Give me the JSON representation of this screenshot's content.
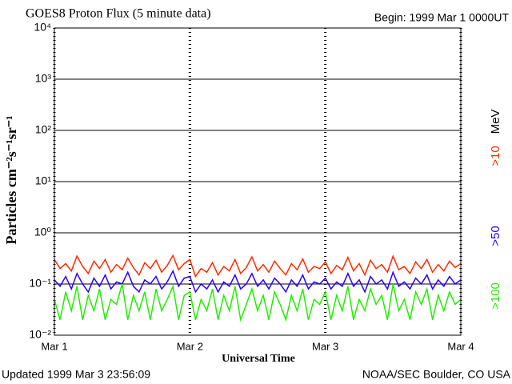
{
  "chart_data": {
    "type": "line",
    "title": "GOES8 Proton Flux (5 minute data)",
    "subtitle": "Begin: 1999 Mar 1 0000UT",
    "y_label": "Particles cm⁻²s⁻¹sr⁻¹",
    "x_label": "Universal Time",
    "legend_unit": "MeV",
    "footer_left": "Updated 1999 Mar  3 23:56:09",
    "footer_right": "NOAA/SEC Boulder, CO USA",
    "log_y": true,
    "grid": true,
    "xlim": [
      0,
      72
    ],
    "xticks": [
      {
        "value": 0,
        "label": "Mar 1"
      },
      {
        "value": 24,
        "label": "Mar 2"
      },
      {
        "value": 48,
        "label": "Mar 3"
      },
      {
        "value": 72,
        "label": "Mar 4"
      }
    ],
    "ylim": [
      0.01,
      10000
    ],
    "yticks": [
      {
        "value": 0.01,
        "label": "10⁻²"
      },
      {
        "value": 0.1,
        "label": "10⁻¹"
      },
      {
        "value": 1,
        "label": "10⁰"
      },
      {
        "value": 10,
        "label": "10¹"
      },
      {
        "value": 100,
        "label": "10²"
      },
      {
        "value": 1000,
        "label": "10³"
      },
      {
        "value": 10000,
        "label": "10⁴"
      }
    ],
    "x": [
      0,
      1,
      2,
      3,
      4,
      5,
      6,
      7,
      8,
      9,
      10,
      11,
      12,
      13,
      14,
      15,
      16,
      17,
      18,
      19,
      20,
      21,
      22,
      23,
      24,
      25,
      26,
      27,
      28,
      29,
      30,
      31,
      32,
      33,
      34,
      35,
      36,
      37,
      38,
      39,
      40,
      41,
      42,
      43,
      44,
      45,
      46,
      47,
      48,
      49,
      50,
      51,
      52,
      53,
      54,
      55,
      56,
      57,
      58,
      59,
      60,
      61,
      62,
      63,
      64,
      65,
      66,
      67,
      68,
      69,
      70,
      71,
      72
    ],
    "series": [
      {
        "name": ">10",
        "color": "#ff2a00",
        "values": [
          0.3,
          0.2,
          0.25,
          0.18,
          0.35,
          0.22,
          0.16,
          0.28,
          0.2,
          0.3,
          0.17,
          0.24,
          0.19,
          0.32,
          0.21,
          0.15,
          0.26,
          0.2,
          0.29,
          0.17,
          0.23,
          0.36,
          0.19,
          0.25,
          0.3,
          0.14,
          0.2,
          0.17,
          0.26,
          0.15,
          0.22,
          0.18,
          0.3,
          0.16,
          0.21,
          0.34,
          0.18,
          0.24,
          0.17,
          0.28,
          0.2,
          0.15,
          0.25,
          0.19,
          0.31,
          0.17,
          0.22,
          0.2,
          0.27,
          0.16,
          0.23,
          0.19,
          0.33,
          0.18,
          0.25,
          0.15,
          0.29,
          0.2,
          0.24,
          0.17,
          0.35,
          0.19,
          0.22,
          0.16,
          0.27,
          0.2,
          0.3,
          0.17,
          0.24,
          0.18,
          0.28,
          0.21,
          0.25
        ]
      },
      {
        "name": ">50",
        "color": "#2a00ff",
        "values": [
          0.12,
          0.09,
          0.14,
          0.08,
          0.16,
          0.1,
          0.07,
          0.13,
          0.09,
          0.15,
          0.08,
          0.11,
          0.1,
          0.17,
          0.09,
          0.07,
          0.12,
          0.1,
          0.14,
          0.08,
          0.11,
          0.18,
          0.09,
          0.13,
          0.14,
          0.07,
          0.1,
          0.08,
          0.12,
          0.07,
          0.11,
          0.09,
          0.15,
          0.08,
          0.1,
          0.16,
          0.09,
          0.12,
          0.08,
          0.13,
          0.1,
          0.07,
          0.12,
          0.09,
          0.15,
          0.08,
          0.11,
          0.1,
          0.13,
          0.08,
          0.11,
          0.09,
          0.16,
          0.09,
          0.12,
          0.07,
          0.14,
          0.1,
          0.12,
          0.08,
          0.17,
          0.09,
          0.11,
          0.08,
          0.13,
          0.1,
          0.15,
          0.08,
          0.12,
          0.09,
          0.14,
          0.1,
          0.12
        ]
      },
      {
        "name": ">100",
        "color": "#22ee00",
        "values": [
          0.05,
          0.02,
          0.07,
          0.03,
          0.09,
          0.02,
          0.06,
          0.03,
          0.08,
          0.02,
          0.05,
          0.04,
          0.1,
          0.02,
          0.06,
          0.03,
          0.07,
          0.02,
          0.08,
          0.03,
          0.05,
          0.09,
          0.02,
          0.06,
          0.07,
          0.02,
          0.05,
          0.03,
          0.08,
          0.02,
          0.06,
          0.03,
          0.09,
          0.02,
          0.04,
          0.08,
          0.03,
          0.06,
          0.02,
          0.07,
          0.04,
          0.02,
          0.06,
          0.03,
          0.08,
          0.02,
          0.05,
          0.04,
          0.07,
          0.02,
          0.06,
          0.03,
          0.09,
          0.02,
          0.05,
          0.03,
          0.08,
          0.04,
          0.06,
          0.02,
          0.1,
          0.03,
          0.05,
          0.02,
          0.07,
          0.04,
          0.08,
          0.02,
          0.06,
          0.03,
          0.07,
          0.04,
          0.05
        ]
      }
    ]
  }
}
